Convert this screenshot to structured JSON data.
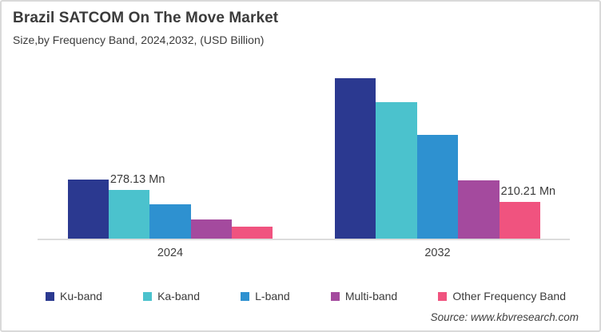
{
  "header": {
    "title": "Brazil SATCOM On The Move Market",
    "subtitle": "Size,by Frequency Band, 2024,2032, (USD Billion)"
  },
  "source": "Source: www.kbvresearch.com",
  "colors": {
    "ku_band": "#2B3990",
    "ka_band": "#4BC2CD",
    "l_band": "#2E91D0",
    "multi_band": "#A44A9E",
    "other_band": "#F0537F",
    "axis_line": "#DCDCDC",
    "text": "#3B3B3B"
  },
  "chart_data": {
    "type": "bar",
    "title": "Brazil SATCOM On The Move Market",
    "subtitle": "Size,by Frequency Band, 2024,2032, (USD Billion)",
    "unit": "USD Million",
    "categories": [
      "2024",
      "2032"
    ],
    "series": [
      {
        "name": "Ku-band",
        "color": "#2B3990",
        "values": [
          338,
          918
        ],
        "labels": [
          null,
          null
        ]
      },
      {
        "name": "Ka-band",
        "color": "#4BC2CD",
        "values": [
          278.13,
          781
        ],
        "labels": [
          "278.13 Mn",
          null
        ]
      },
      {
        "name": "L-band",
        "color": "#2E91D0",
        "values": [
          196,
          594
        ],
        "labels": [
          null,
          null
        ]
      },
      {
        "name": "Multi-band",
        "color": "#A44A9E",
        "values": [
          110,
          333
        ],
        "labels": [
          null,
          null
        ]
      },
      {
        "name": "Other Frequency Band",
        "color": "#F0537F",
        "values": [
          68,
          210.21
        ],
        "labels": [
          null,
          "210.21 Mn"
        ]
      }
    ],
    "ylim": [
      0,
      1000
    ],
    "grid": false,
    "y_axis_visible": false,
    "legend_position": "bottom",
    "annotations": [
      "278.13 Mn",
      "210.21 Mn"
    ]
  }
}
